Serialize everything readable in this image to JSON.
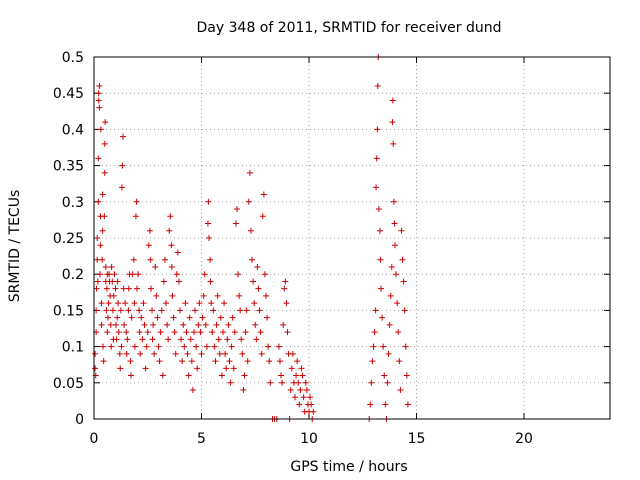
{
  "chart_data": {
    "type": "scatter",
    "title": "Day 348 of 2011, SRMTID for receiver dund",
    "xlabel": "GPS time / hours",
    "ylabel": "SRMTID / TECUs",
    "xlim": [
      0,
      24
    ],
    "ylim": [
      0,
      0.5
    ],
    "xticks": [
      "0",
      "5",
      "10",
      "15",
      "20"
    ],
    "yticks": [
      "0",
      "0.05",
      "0.1",
      "0.15",
      "0.2",
      "0.25",
      "0.3",
      "0.35",
      "0.4",
      "0.45",
      "0.5"
    ],
    "grid": true,
    "marker": "+",
    "color": "#cc0000",
    "series": [
      {
        "name": "SRMTID",
        "points": [
          [
            0.05,
            0.07
          ],
          [
            0.05,
            0.09
          ],
          [
            0.08,
            0.06
          ],
          [
            0.1,
            0.12
          ],
          [
            0.1,
            0.15
          ],
          [
            0.12,
            0.18
          ],
          [
            0.15,
            0.22
          ],
          [
            0.15,
            0.25
          ],
          [
            0.18,
            0.19
          ],
          [
            0.2,
            0.36
          ],
          [
            0.2,
            0.3
          ],
          [
            0.22,
            0.45
          ],
          [
            0.22,
            0.44
          ],
          [
            0.25,
            0.43
          ],
          [
            0.25,
            0.46
          ],
          [
            0.28,
            0.2
          ],
          [
            0.3,
            0.24
          ],
          [
            0.3,
            0.28
          ],
          [
            0.32,
            0.4
          ],
          [
            0.35,
            0.16
          ],
          [
            0.35,
            0.13
          ],
          [
            0.38,
            0.22
          ],
          [
            0.4,
            0.31
          ],
          [
            0.4,
            0.26
          ],
          [
            0.42,
            0.1
          ],
          [
            0.45,
            0.08
          ],
          [
            0.48,
            0.28
          ],
          [
            0.5,
            0.38
          ],
          [
            0.5,
            0.34
          ],
          [
            0.52,
            0.41
          ],
          [
            0.55,
            0.19
          ],
          [
            0.55,
            0.21
          ],
          [
            0.58,
            0.15
          ],
          [
            0.6,
            0.18
          ],
          [
            0.62,
            0.2
          ],
          [
            0.62,
            0.12
          ],
          [
            0.65,
            0.14
          ],
          [
            0.68,
            0.16
          ],
          [
            0.7,
            0.2
          ],
          [
            0.72,
            0.19
          ],
          [
            0.75,
            0.17
          ],
          [
            0.78,
            0.13
          ],
          [
            0.8,
            0.1
          ],
          [
            0.82,
            0.21
          ],
          [
            0.85,
            0.19
          ],
          [
            0.88,
            0.15
          ],
          [
            0.9,
            0.11
          ],
          [
            0.92,
            0.17
          ],
          [
            0.95,
            0.2
          ],
          [
            1.0,
            0.18
          ],
          [
            1.02,
            0.13
          ],
          [
            1.05,
            0.11
          ],
          [
            1.08,
            0.14
          ],
          [
            1.1,
            0.19
          ],
          [
            1.12,
            0.16
          ],
          [
            1.15,
            0.12
          ],
          [
            1.2,
            0.09
          ],
          [
            1.22,
            0.07
          ],
          [
            1.25,
            0.15
          ],
          [
            1.28,
            0.1
          ],
          [
            1.3,
            0.32
          ],
          [
            1.32,
            0.35
          ],
          [
            1.35,
            0.39
          ],
          [
            1.38,
            0.18
          ],
          [
            1.4,
            0.13
          ],
          [
            1.45,
            0.16
          ],
          [
            1.5,
            0.12
          ],
          [
            1.52,
            0.09
          ],
          [
            1.55,
            0.11
          ],
          [
            1.6,
            0.15
          ],
          [
            1.62,
            0.18
          ],
          [
            1.65,
            0.2
          ],
          [
            1.7,
            0.08
          ],
          [
            1.72,
            0.06
          ],
          [
            1.75,
            0.14
          ],
          [
            1.8,
            0.2
          ],
          [
            1.85,
            0.22
          ],
          [
            1.88,
            0.16
          ],
          [
            1.9,
            0.1
          ],
          [
            1.95,
            0.28
          ],
          [
            1.98,
            0.3
          ],
          [
            2.0,
            0.18
          ],
          [
            2.05,
            0.2
          ],
          [
            2.1,
            0.15
          ],
          [
            2.12,
            0.12
          ],
          [
            2.15,
            0.09
          ],
          [
            2.2,
            0.14
          ],
          [
            2.25,
            0.11
          ],
          [
            2.3,
            0.16
          ],
          [
            2.35,
            0.13
          ],
          [
            2.4,
            0.07
          ],
          [
            2.45,
            0.1
          ],
          [
            2.5,
            0.12
          ],
          [
            2.55,
            0.24
          ],
          [
            2.6,
            0.26
          ],
          [
            2.62,
            0.22
          ],
          [
            2.65,
            0.18
          ],
          [
            2.7,
            0.15
          ],
          [
            2.72,
            0.11
          ],
          [
            2.75,
            0.13
          ],
          [
            2.8,
            0.09
          ],
          [
            2.85,
            0.21
          ],
          [
            2.9,
            0.17
          ],
          [
            2.95,
            0.14
          ],
          [
            3.0,
            0.1
          ],
          [
            3.05,
            0.08
          ],
          [
            3.1,
            0.12
          ],
          [
            3.15,
            0.15
          ],
          [
            3.2,
            0.06
          ],
          [
            3.25,
            0.19
          ],
          [
            3.3,
            0.22
          ],
          [
            3.35,
            0.16
          ],
          [
            3.4,
            0.13
          ],
          [
            3.45,
            0.11
          ],
          [
            3.5,
            0.26
          ],
          [
            3.55,
            0.28
          ],
          [
            3.6,
            0.24
          ],
          [
            3.62,
            0.21
          ],
          [
            3.65,
            0.17
          ],
          [
            3.7,
            0.14
          ],
          [
            3.75,
            0.12
          ],
          [
            3.8,
            0.09
          ],
          [
            3.85,
            0.2
          ],
          [
            3.9,
            0.23
          ],
          [
            3.95,
            0.19
          ],
          [
            4.0,
            0.15
          ],
          [
            4.05,
            0.11
          ],
          [
            4.1,
            0.08
          ],
          [
            4.15,
            0.13
          ],
          [
            4.2,
            0.1
          ],
          [
            4.25,
            0.16
          ],
          [
            4.3,
            0.12
          ],
          [
            4.35,
            0.09
          ],
          [
            4.4,
            0.06
          ],
          [
            4.45,
            0.14
          ],
          [
            4.5,
            0.11
          ],
          [
            4.55,
            0.08
          ],
          [
            4.6,
            0.04
          ],
          [
            4.65,
            0.12
          ],
          [
            4.7,
            0.15
          ],
          [
            4.75,
            0.1
          ],
          [
            4.8,
            0.07
          ],
          [
            4.85,
            0.13
          ],
          [
            4.9,
            0.16
          ],
          [
            4.95,
            0.12
          ],
          [
            5.0,
            0.09
          ],
          [
            5.05,
            0.14
          ],
          [
            5.1,
            0.17
          ],
          [
            5.15,
            0.2
          ],
          [
            5.2,
            0.13
          ],
          [
            5.25,
            0.1
          ],
          [
            5.3,
            0.27
          ],
          [
            5.32,
            0.3
          ],
          [
            5.35,
            0.25
          ],
          [
            5.4,
            0.22
          ],
          [
            5.42,
            0.19
          ],
          [
            5.45,
            0.16
          ],
          [
            5.5,
            0.12
          ],
          [
            5.55,
            0.15
          ],
          [
            5.6,
            0.1
          ],
          [
            5.65,
            0.08
          ],
          [
            5.7,
            0.13
          ],
          [
            5.75,
            0.17
          ],
          [
            5.8,
            0.11
          ],
          [
            5.85,
            0.09
          ],
          [
            5.9,
            0.14
          ],
          [
            5.95,
            0.06
          ],
          [
            6.0,
            0.12
          ],
          [
            6.05,
            0.16
          ],
          [
            6.1,
            0.09
          ],
          [
            6.15,
            0.07
          ],
          [
            6.2,
            0.11
          ],
          [
            6.25,
            0.13
          ],
          [
            6.3,
            0.08
          ],
          [
            6.35,
            0.05
          ],
          [
            6.4,
            0.1
          ],
          [
            6.45,
            0.14
          ],
          [
            6.5,
            0.07
          ],
          [
            6.55,
            0.12
          ],
          [
            6.6,
            0.27
          ],
          [
            6.65,
            0.29
          ],
          [
            6.7,
            0.2
          ],
          [
            6.75,
            0.17
          ],
          [
            6.8,
            0.15
          ],
          [
            6.85,
            0.11
          ],
          [
            6.9,
            0.09
          ],
          [
            6.95,
            0.04
          ],
          [
            7.0,
            0.06
          ],
          [
            7.05,
            0.12
          ],
          [
            7.1,
            0.15
          ],
          [
            7.15,
            0.08
          ],
          [
            7.2,
            0.3
          ],
          [
            7.25,
            0.34
          ],
          [
            7.3,
            0.26
          ],
          [
            7.35,
            0.22
          ],
          [
            7.4,
            0.19
          ],
          [
            7.45,
            0.16
          ],
          [
            7.5,
            0.13
          ],
          [
            7.55,
            0.11
          ],
          [
            7.6,
            0.21
          ],
          [
            7.65,
            0.18
          ],
          [
            7.7,
            0.15
          ],
          [
            7.75,
            0.12
          ],
          [
            7.8,
            0.09
          ],
          [
            7.85,
            0.28
          ],
          [
            7.9,
            0.31
          ],
          [
            7.95,
            0.2
          ],
          [
            8.0,
            0.17
          ],
          [
            8.05,
            0.14
          ],
          [
            8.1,
            0.1
          ],
          [
            8.15,
            0.08
          ],
          [
            8.2,
            0.05
          ],
          [
            8.3,
            0.0
          ],
          [
            8.4,
            0.0
          ],
          [
            8.5,
            0.0
          ],
          [
            8.6,
            0.1
          ],
          [
            8.65,
            0.08
          ],
          [
            8.7,
            0.06
          ],
          [
            8.75,
            0.05
          ],
          [
            8.8,
            0.13
          ],
          [
            8.85,
            0.18
          ],
          [
            8.9,
            0.19
          ],
          [
            8.95,
            0.16
          ],
          [
            9.0,
            0.12
          ],
          [
            9.05,
            0.09
          ],
          [
            9.1,
            0.0
          ],
          [
            9.15,
            0.04
          ],
          [
            9.2,
            0.07
          ],
          [
            9.25,
            0.09
          ],
          [
            9.3,
            0.05
          ],
          [
            9.35,
            0.03
          ],
          [
            9.4,
            0.06
          ],
          [
            9.45,
            0.08
          ],
          [
            9.5,
            0.05
          ],
          [
            9.55,
            0.02
          ],
          [
            9.6,
            0.04
          ],
          [
            9.65,
            0.07
          ],
          [
            9.7,
            0.06
          ],
          [
            9.75,
            0.03
          ],
          [
            9.8,
            0.01
          ],
          [
            9.85,
            0.05
          ],
          [
            9.9,
            0.04
          ],
          [
            9.95,
            0.02
          ],
          [
            10.0,
            0.01
          ],
          [
            10.05,
            0.03
          ],
          [
            10.1,
            0.02
          ],
          [
            10.15,
            0.0
          ],
          [
            10.2,
            0.01
          ],
          [
            12.8,
            0.0
          ],
          [
            12.85,
            0.02
          ],
          [
            12.9,
            0.05
          ],
          [
            12.95,
            0.08
          ],
          [
            13.0,
            0.1
          ],
          [
            13.05,
            0.12
          ],
          [
            13.1,
            0.15
          ],
          [
            13.12,
            0.32
          ],
          [
            13.15,
            0.36
          ],
          [
            13.18,
            0.4
          ],
          [
            13.2,
            0.46
          ],
          [
            13.22,
            0.5
          ],
          [
            13.25,
            0.29
          ],
          [
            13.3,
            0.26
          ],
          [
            13.32,
            0.22
          ],
          [
            13.35,
            0.18
          ],
          [
            13.4,
            0.14
          ],
          [
            13.45,
            0.1
          ],
          [
            13.5,
            0.06
          ],
          [
            13.55,
            0.02
          ],
          [
            13.6,
            0.0
          ],
          [
            13.65,
            0.05
          ],
          [
            13.7,
            0.09
          ],
          [
            13.75,
            0.13
          ],
          [
            13.8,
            0.17
          ],
          [
            13.85,
            0.21
          ],
          [
            13.88,
            0.41
          ],
          [
            13.9,
            0.44
          ],
          [
            13.92,
            0.38
          ],
          [
            13.95,
            0.3
          ],
          [
            13.98,
            0.27
          ],
          [
            14.0,
            0.24
          ],
          [
            14.05,
            0.2
          ],
          [
            14.1,
            0.16
          ],
          [
            14.15,
            0.12
          ],
          [
            14.2,
            0.08
          ],
          [
            14.25,
            0.04
          ],
          [
            14.3,
            0.26
          ],
          [
            14.35,
            0.22
          ],
          [
            14.4,
            0.19
          ],
          [
            14.45,
            0.15
          ],
          [
            14.5,
            0.1
          ],
          [
            14.55,
            0.06
          ],
          [
            14.6,
            0.02
          ]
        ]
      }
    ]
  }
}
